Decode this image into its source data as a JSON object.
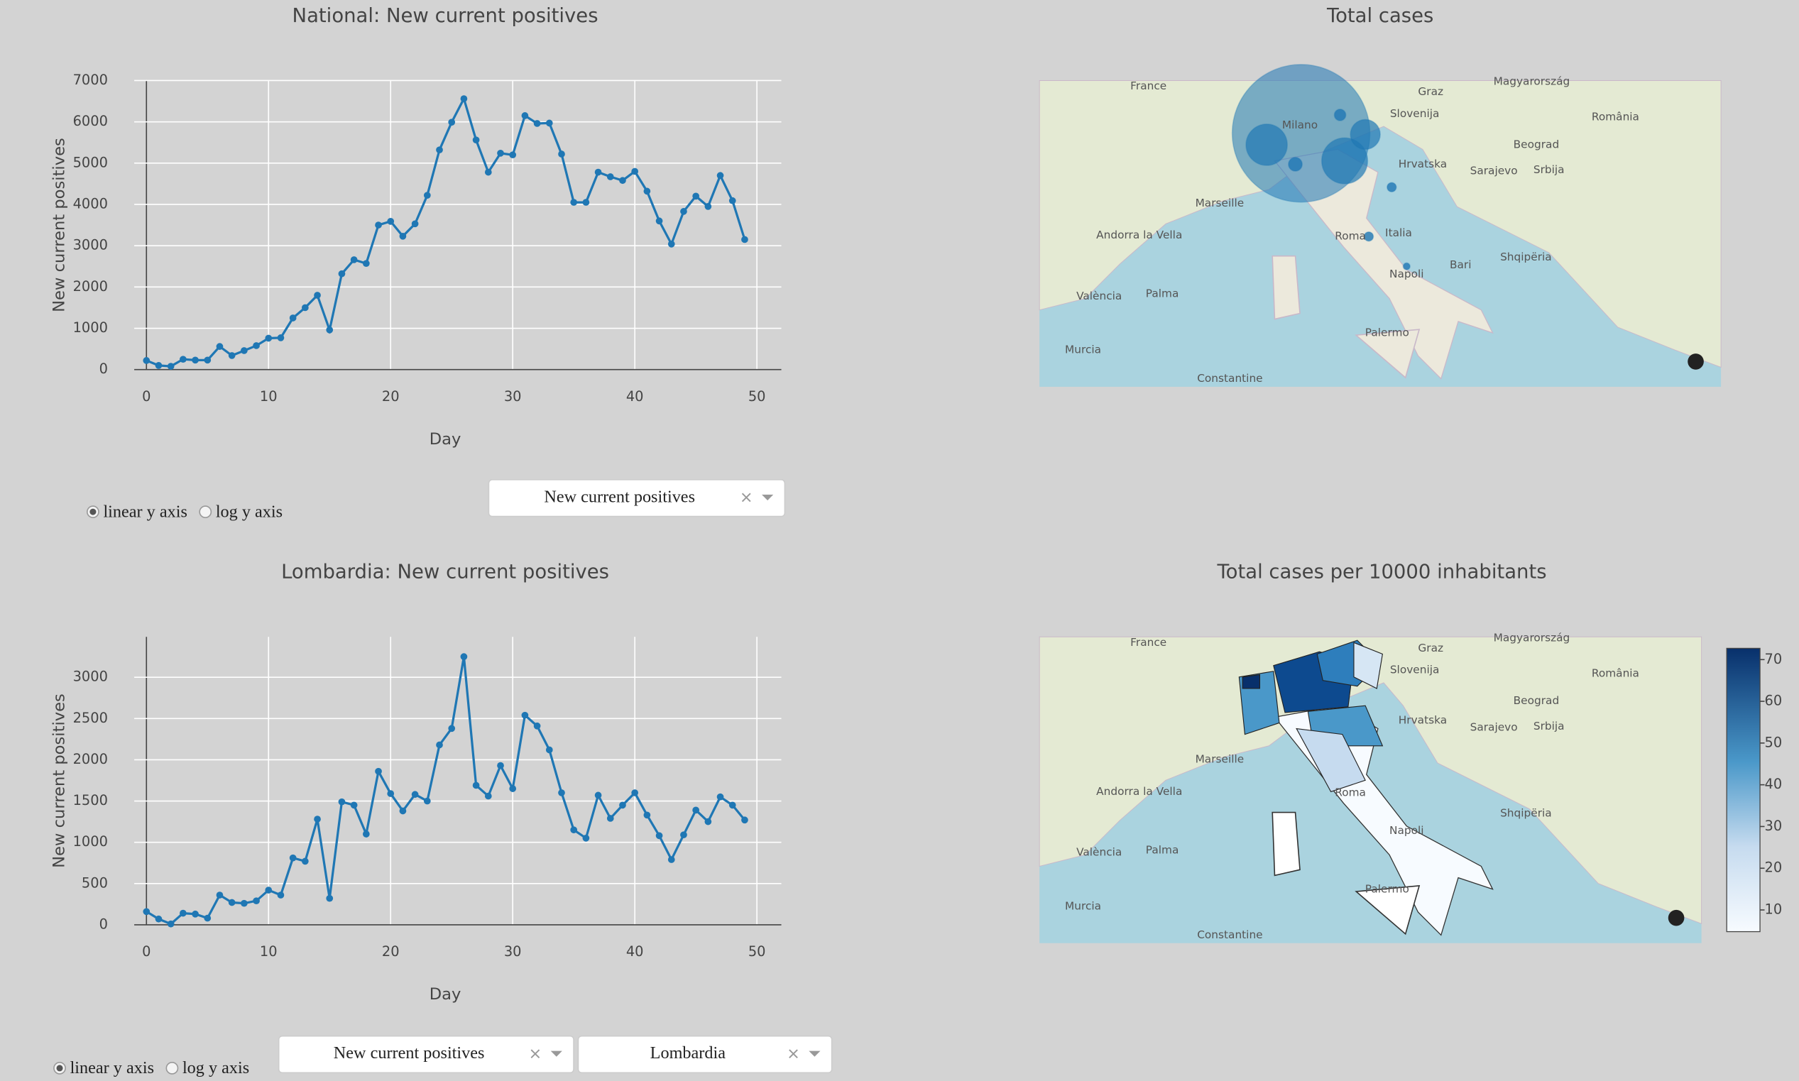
{
  "chart_data": [
    {
      "type": "line",
      "title": "National: New current positives",
      "xlabel": "Day",
      "ylabel": "New current positives",
      "x": [
        0,
        1,
        2,
        3,
        4,
        5,
        6,
        7,
        8,
        9,
        10,
        11,
        12,
        13,
        14,
        15,
        16,
        17,
        18,
        19,
        20,
        21,
        22,
        23,
        24,
        25,
        26,
        27,
        28,
        29,
        30,
        31,
        32,
        33,
        34,
        35,
        36,
        37,
        38,
        39,
        40,
        41,
        42,
        43,
        44,
        45,
        46,
        47,
        48,
        49
      ],
      "series": [
        {
          "name": "New current positives",
          "color": "#1f77b4",
          "values": [
            220,
            100,
            80,
            250,
            230,
            230,
            560,
            340,
            460,
            580,
            760,
            770,
            1250,
            1500,
            1800,
            960,
            2320,
            2660,
            2570,
            3500,
            3590,
            3230,
            3530,
            4220,
            5320,
            5990,
            6560,
            5560,
            4780,
            5240,
            5200,
            6150,
            5960,
            5970,
            5220,
            4050,
            4050,
            4780,
            4670,
            4580,
            4800,
            4320,
            3600,
            3040,
            3830,
            4200,
            3950,
            4700,
            4090,
            3150
          ]
        }
      ],
      "xlim": [
        -1,
        52
      ],
      "ylim": [
        0,
        7000
      ],
      "xticks": [
        0,
        10,
        20,
        30,
        40,
        50
      ],
      "yticks": [
        0,
        1000,
        2000,
        3000,
        4000,
        5000,
        6000,
        7000
      ],
      "grid": true
    },
    {
      "type": "line",
      "title": "Lombardia: New current positives",
      "xlabel": "Day",
      "ylabel": "New current positives",
      "x": [
        0,
        1,
        2,
        3,
        4,
        5,
        6,
        7,
        8,
        9,
        10,
        11,
        12,
        13,
        14,
        15,
        16,
        17,
        18,
        19,
        20,
        21,
        22,
        23,
        24,
        25,
        26,
        27,
        28,
        29,
        30,
        31,
        32,
        33,
        34,
        35,
        36,
        37,
        38,
        39,
        40,
        41,
        42,
        43,
        44,
        45,
        46,
        47,
        48,
        49
      ],
      "series": [
        {
          "name": "New current positives",
          "color": "#1f77b4",
          "values": [
            160,
            70,
            10,
            140,
            130,
            80,
            360,
            270,
            260,
            290,
            420,
            360,
            810,
            770,
            1280,
            320,
            1490,
            1450,
            1100,
            1860,
            1590,
            1380,
            1580,
            1500,
            2180,
            2380,
            3250,
            1690,
            1560,
            1930,
            1650,
            2540,
            2410,
            2120,
            1600,
            1150,
            1050,
            1570,
            1290,
            1450,
            1600,
            1330,
            1080,
            790,
            1090,
            1390,
            1250,
            1550,
            1450,
            1270
          ]
        }
      ],
      "xlim": [
        -1,
        52
      ],
      "ylim": [
        0,
        3490
      ],
      "xticks": [
        0,
        10,
        20,
        30,
        40,
        50
      ],
      "yticks": [
        0,
        500,
        1000,
        1500,
        2000,
        2500,
        3000
      ],
      "grid": true
    }
  ],
  "maps": [
    {
      "title": "Total cases",
      "labels": [
        "France",
        "Slovenija",
        "Hrvatska",
        "Milano",
        "Marseille",
        "Italia",
        "Roma",
        "Napoli",
        "Bari",
        "Palermo",
        "Sarajevo",
        "Srbija",
        "Beograd",
        "România",
        "Graz",
        "Magyarország",
        "Shqipëria",
        "Constantine",
        "Andorra la Vella",
        "València",
        "Palma",
        "Murcia"
      ]
    },
    {
      "title": "Total cases per 10000 inhabitants",
      "labels": [
        "France",
        "Slovenija",
        "Hrvatska",
        "Marseille",
        "Roma",
        "Napoli",
        "Palermo",
        "Sarajevo",
        "Srbija",
        "Beograd",
        "România",
        "Graz",
        "Magyarország",
        "Shqipëria",
        "Constantine",
        "Andorra la Vella",
        "València",
        "Palma",
        "Murcia"
      ],
      "colorbar": {
        "range": [
          4.8,
          72.7
        ],
        "ticks": [
          10,
          20,
          30,
          40,
          50,
          60,
          70
        ]
      }
    }
  ],
  "controls": [
    {
      "radios": [
        "linear y axis",
        "log y axis"
      ],
      "dropdowns": [
        "New current positives"
      ]
    },
    {
      "radios": [
        "linear y axis",
        "log y axis"
      ],
      "dropdowns": [
        "New current positives",
        "Lombardia"
      ]
    }
  ]
}
